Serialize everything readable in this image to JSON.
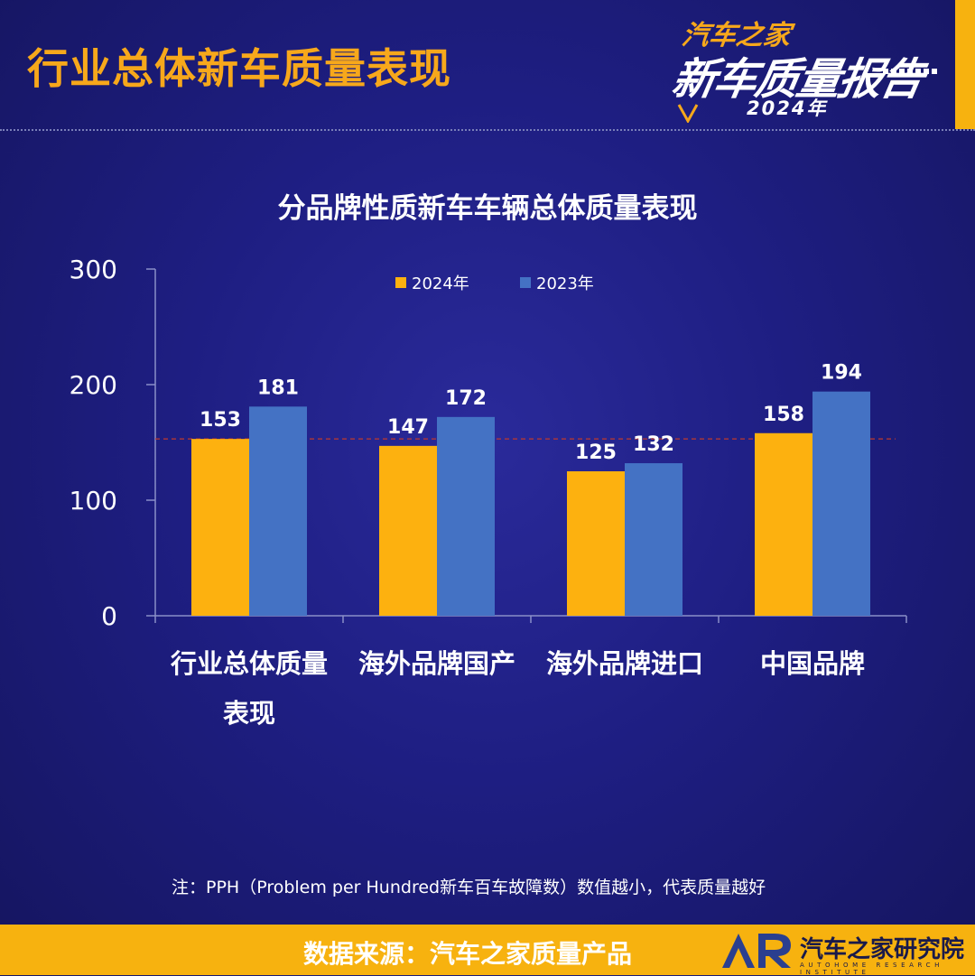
{
  "header": {
    "title": "行业总体新车质量表现",
    "logo_brand": "汽车之家",
    "logo_title": "新车质量报告",
    "logo_year": "2024年"
  },
  "colors": {
    "series_2024": "#FDB10F",
    "series_2023": "#4472C4",
    "accent": "#F7B20F",
    "reference_line": "#C0392B"
  },
  "chart_data": {
    "type": "bar",
    "title": "分品牌性质新车车辆总体质量表现",
    "categories": [
      "行业总体质量表现",
      "海外品牌国产",
      "海外品牌进口",
      "中国品牌"
    ],
    "series": [
      {
        "name": "2024年",
        "values": [
          153,
          147,
          125,
          158
        ]
      },
      {
        "name": "2023年",
        "values": [
          181,
          172,
          132,
          194
        ]
      }
    ],
    "yticks": [
      0,
      100,
      200,
      300
    ],
    "ylim": [
      0,
      300
    ],
    "reference_line": 153,
    "legend_position": "top-center",
    "grid": false
  },
  "note": "注：PPH（Problem per Hundred新车百车故障数）数值越小，代表质量越好",
  "footer": {
    "source": "数据来源：汽车之家质量产品",
    "org_name": "汽车之家研究院",
    "org_sub": "AUTOHOME RESEARCH INSTITUTE"
  }
}
